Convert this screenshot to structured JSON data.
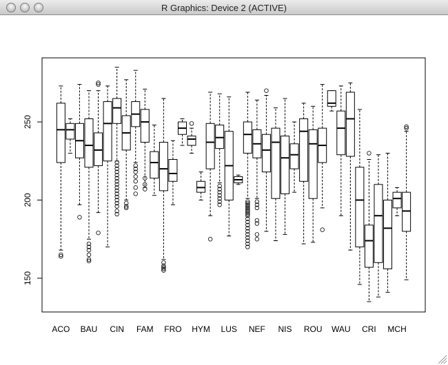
{
  "window_title": "R Graphics: Device 2 (ACTIVE)",
  "chart_data": {
    "type": "box",
    "categories": [
      "ACO",
      null,
      null,
      "BAU",
      null,
      null,
      "CIN",
      null,
      null,
      "FAM",
      null,
      null,
      "FRO",
      null,
      null,
      "HYM",
      null,
      null,
      "LUS",
      null,
      null,
      "NEF",
      null,
      null,
      "NIS",
      null,
      null,
      "ROU",
      null,
      null,
      "WAU",
      null,
      null,
      "CRI",
      null,
      null,
      "MCH",
      null
    ],
    "boxes": [
      {
        "whislo": 168,
        "q1": 224,
        "med": 245,
        "q3": 262,
        "whishi": 273,
        "fliers": [
          165,
          164
        ]
      },
      {
        "whislo": 230,
        "q1": 239,
        "med": 245,
        "q3": 249,
        "whishi": 252,
        "fliers": []
      },
      {
        "whislo": 197,
        "q1": 227,
        "med": 238,
        "q3": 249,
        "whishi": 274,
        "fliers": [
          189
        ]
      },
      {
        "whislo": 175,
        "q1": 221,
        "med": 235,
        "q3": 252,
        "whishi": 270,
        "fliers": [
          172,
          170,
          168,
          165,
          162,
          161
        ]
      },
      {
        "whislo": 192,
        "q1": 222,
        "med": 232,
        "q3": 243,
        "whishi": 270,
        "fliers": [
          179,
          275,
          274
        ]
      },
      {
        "whislo": 170,
        "q1": 225,
        "med": 249,
        "q3": 263,
        "whishi": 273,
        "fliers": []
      },
      {
        "whislo": 225,
        "q1": 249,
        "med": 259,
        "q3": 265,
        "whishi": 285,
        "fliers": [
          224,
          222,
          220,
          218,
          216,
          214,
          212,
          210,
          208,
          206,
          204,
          202,
          200,
          198,
          196,
          193,
          191
        ]
      },
      {
        "whislo": 200,
        "q1": 232,
        "med": 243,
        "q3": 254,
        "whishi": 277,
        "fliers": [
          198,
          196,
          195
        ]
      },
      {
        "whislo": 224,
        "q1": 247,
        "med": 255,
        "q3": 263,
        "whishi": 283,
        "fliers": [
          222,
          220,
          218,
          215,
          212,
          208,
          204
        ]
      },
      {
        "whislo": 208,
        "q1": 237,
        "med": 250,
        "q3": 258,
        "whishi": 271,
        "fliers": [
          214,
          210,
          207
        ]
      },
      {
        "whislo": 203,
        "q1": 214,
        "med": 224,
        "q3": 231,
        "whishi": 248,
        "fliers": []
      },
      {
        "whislo": 162,
        "q1": 206,
        "med": 220,
        "q3": 237,
        "whishi": 265,
        "fliers": [
          160,
          158,
          157,
          156,
          155
        ]
      },
      {
        "whislo": 197,
        "q1": 212,
        "med": 217,
        "q3": 226,
        "whishi": 238,
        "fliers": []
      },
      {
        "whislo": 235,
        "q1": 242,
        "med": 246,
        "q3": 250,
        "whishi": 252,
        "fliers": []
      },
      {
        "whislo": 230,
        "q1": 235,
        "med": 239,
        "q3": 241,
        "whishi": 246,
        "fliers": [
          249
        ]
      },
      {
        "whislo": 200,
        "q1": 205,
        "med": 208,
        "q3": 212,
        "whishi": 218,
        "fliers": []
      },
      {
        "whislo": 190,
        "q1": 220,
        "med": 237,
        "q3": 249,
        "whishi": 269,
        "fliers": [
          175
        ]
      },
      {
        "whislo": 211,
        "q1": 233,
        "med": 240,
        "q3": 248,
        "whishi": 268,
        "fliers": [
          209,
          207,
          205,
          203,
          201,
          199,
          197
        ]
      },
      {
        "whislo": 177,
        "q1": 200,
        "med": 222,
        "q3": 244,
        "whishi": 266,
        "fliers": []
      },
      {
        "whislo": 210,
        "q1": 211,
        "med": 213,
        "q3": 215,
        "whishi": 216,
        "fliers": []
      },
      {
        "whislo": 201,
        "q1": 230,
        "med": 242,
        "q3": 250,
        "whishi": 269,
        "fliers": [
          199,
          198,
          197,
          196,
          195,
          194,
          193,
          192,
          191,
          190,
          188,
          186,
          184,
          182,
          180,
          178,
          176,
          174,
          172,
          170
        ]
      },
      {
        "whislo": 201,
        "q1": 227,
        "med": 236,
        "q3": 245,
        "whishi": 264,
        "fliers": [
          199,
          197,
          195,
          187,
          185,
          178,
          175
        ]
      },
      {
        "whislo": 180,
        "q1": 218,
        "med": 232,
        "q3": 242,
        "whishi": 267,
        "fliers": [
          270
        ]
      },
      {
        "whislo": 174,
        "q1": 201,
        "med": 237,
        "q3": 246,
        "whishi": 259,
        "fliers": []
      },
      {
        "whislo": 178,
        "q1": 204,
        "med": 227,
        "q3": 241,
        "whishi": 265,
        "fliers": []
      },
      {
        "whislo": 205,
        "q1": 220,
        "med": 229,
        "q3": 236,
        "whishi": 250,
        "fliers": []
      },
      {
        "whislo": 172,
        "q1": 212,
        "med": 244,
        "q3": 252,
        "whishi": 262,
        "fliers": []
      },
      {
        "whislo": 173,
        "q1": 201,
        "med": 236,
        "q3": 245,
        "whishi": 260,
        "fliers": []
      },
      {
        "whislo": 195,
        "q1": 224,
        "med": 235,
        "q3": 246,
        "whishi": 274,
        "fliers": [
          181
        ]
      },
      {
        "whislo": 257,
        "q1": 260,
        "med": 262,
        "q3": 270,
        "whishi": 270,
        "fliers": []
      },
      {
        "whislo": 190,
        "q1": 229,
        "med": 246,
        "q3": 257,
        "whishi": 273,
        "fliers": []
      },
      {
        "whislo": 168,
        "q1": 228,
        "med": 252,
        "q3": 269,
        "whishi": 275,
        "fliers": []
      },
      {
        "whislo": 146,
        "q1": 170,
        "med": 200,
        "q3": 221,
        "whishi": 258,
        "fliers": []
      },
      {
        "whislo": 135,
        "q1": 157,
        "med": 174,
        "q3": 184,
        "whishi": 226,
        "fliers": [
          230
        ]
      },
      {
        "whislo": 138,
        "q1": 160,
        "med": 190,
        "q3": 210,
        "whishi": 229,
        "fliers": []
      },
      {
        "whislo": 141,
        "q1": 156,
        "med": 182,
        "q3": 200,
        "whishi": 230,
        "fliers": []
      },
      {
        "whislo": 190,
        "q1": 195,
        "med": 201,
        "q3": 205,
        "whishi": 208,
        "fliers": []
      },
      {
        "whislo": 149,
        "q1": 180,
        "med": 193,
        "q3": 205,
        "whishi": 244,
        "fliers": [
          246,
          247
        ]
      }
    ],
    "ylim": [
      128.4,
      291.0
    ],
    "yticks": [
      150,
      200,
      250
    ]
  }
}
